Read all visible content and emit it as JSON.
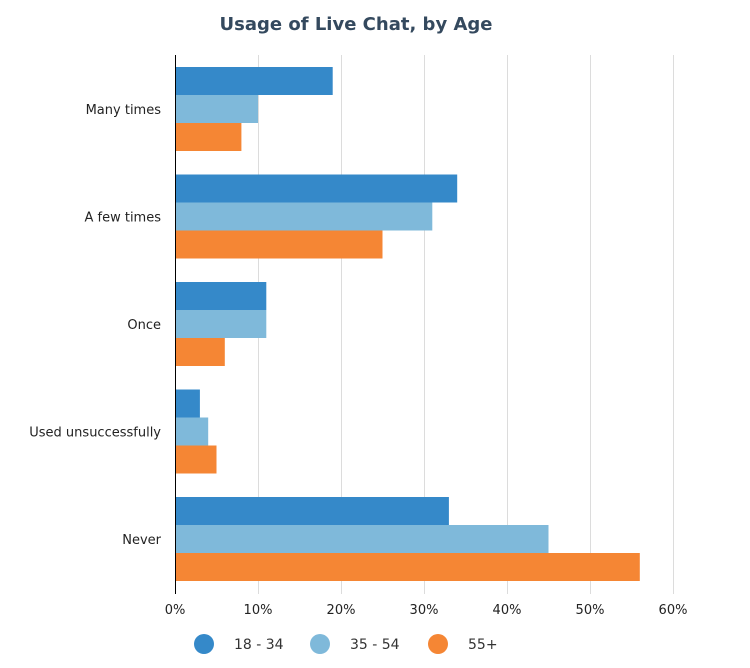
{
  "chart_data": {
    "type": "bar",
    "orientation": "horizontal",
    "title": "Usage of Live Chat, by Age",
    "xlabel": "",
    "ylabel": "",
    "categories": [
      "Many times",
      "A few times",
      "Once",
      "Used unsuccessfully",
      "Never"
    ],
    "series": [
      {
        "name": "18 - 34",
        "color": "#3589c9",
        "values": [
          19,
          34,
          11,
          3,
          33
        ]
      },
      {
        "name": "35 - 54",
        "color": "#7fb9da",
        "values": [
          10,
          31,
          11,
          4,
          45
        ]
      },
      {
        "name": "55+",
        "color": "#f58634",
        "values": [
          8,
          25,
          6,
          5,
          56
        ]
      }
    ],
    "xlim": [
      0,
      60
    ],
    "ticks": [
      0,
      10,
      20,
      30,
      40,
      50,
      60
    ],
    "tick_labels": [
      "0%",
      "10%",
      "20%",
      "30%",
      "40%",
      "50%",
      "60%"
    ],
    "grid": true,
    "legend_position": "bottom"
  }
}
